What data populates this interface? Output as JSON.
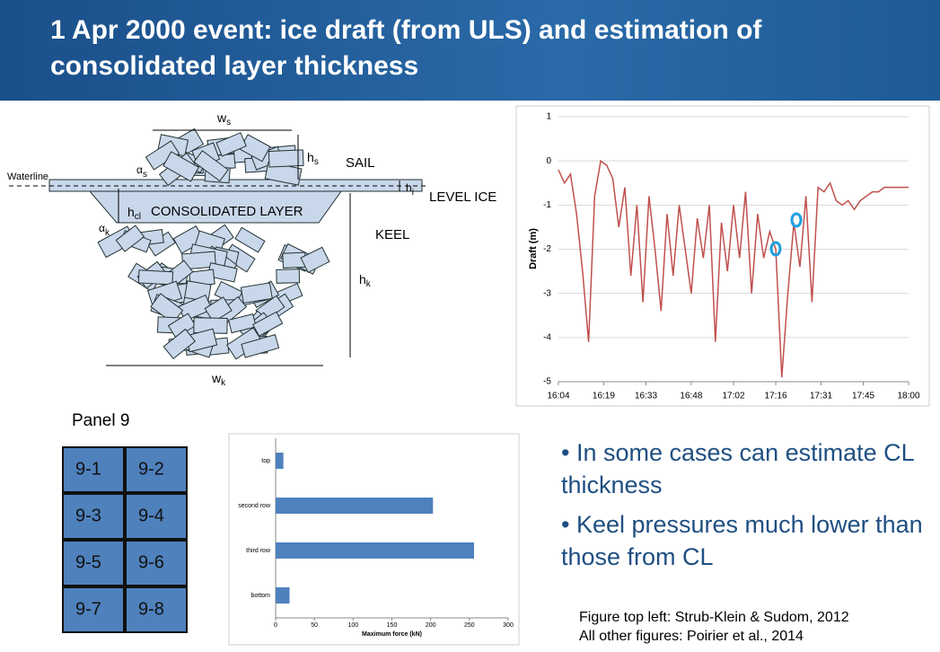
{
  "title": "1 Apr 2000 event: ice draft (from ULS) and estimation of consolidated layer thickness",
  "diagram": {
    "ws": {
      "main": "w",
      "sub": "s"
    },
    "hs": {
      "main": "h",
      "sub": "s"
    },
    "sail": "SAIL",
    "waterline": "Waterline",
    "alpha_s": {
      "main": "α",
      "sub": "s"
    },
    "hi": {
      "main": "h",
      "sub": "i"
    },
    "level_ice": "LEVEL ICE",
    "hcl": {
      "main": "h",
      "sub": "cl"
    },
    "consolidated": "CONSOLIDATED LAYER",
    "alpha_k": {
      "main": "α",
      "sub": "k"
    },
    "keel": "KEEL",
    "hk": {
      "main": "h",
      "sub": "k"
    },
    "wk": {
      "main": "w",
      "sub": "k"
    }
  },
  "panel": {
    "title": "Panel 9",
    "cells": [
      "9-1",
      "9-2",
      "9-3",
      "9-4",
      "9-5",
      "9-6",
      "9-7",
      "9-8"
    ]
  },
  "bullets": [
    "In some cases can estimate CL thickness",
    "Keel pressures much lower than those from CL"
  ],
  "credits": [
    "Figure top left: Strub-Klein & Sudom, 2012",
    "All other figures: Poirier et al., 2014"
  ],
  "chart_data": [
    {
      "type": "line",
      "ylabel": "Draft (m)",
      "color": "#c0504d",
      "x": [
        "16:04",
        "16:06",
        "16:08",
        "16:10",
        "16:12",
        "16:14",
        "16:16",
        "16:18",
        "16:20",
        "16:22",
        "16:24",
        "16:26",
        "16:28",
        "16:30",
        "16:32",
        "16:34",
        "16:36",
        "16:38",
        "16:40",
        "16:42",
        "16:44",
        "16:46",
        "16:48",
        "16:50",
        "16:52",
        "16:54",
        "16:56",
        "16:58",
        "17:00",
        "17:02",
        "17:04",
        "17:06",
        "17:08",
        "17:10",
        "17:12",
        "17:14",
        "17:16",
        "17:18",
        "17:20",
        "17:22",
        "17:24",
        "17:26",
        "17:28",
        "17:30",
        "17:32",
        "17:34",
        "17:36",
        "17:38",
        "17:40",
        "17:42",
        "17:44",
        "17:46",
        "17:48",
        "17:50",
        "17:52",
        "17:54",
        "17:56",
        "17:58",
        "18:00"
      ],
      "values": [
        -0.2,
        -0.5,
        -0.3,
        -1.2,
        -2.5,
        -4.1,
        -0.8,
        0,
        -0.1,
        -0.4,
        -1.5,
        -0.6,
        -2.6,
        -1.0,
        -3.2,
        -0.8,
        -2.0,
        -3.4,
        -1.2,
        -2.6,
        -1.0,
        -2.0,
        -3.0,
        -1.3,
        -2.2,
        -1.0,
        -4.1,
        -1.4,
        -2.5,
        -1.0,
        -2.2,
        -0.7,
        -3.0,
        -1.2,
        -2.2,
        -1.6,
        -2.0,
        -4.9,
        -3.0,
        -1.4,
        -2.4,
        -0.8,
        -3.2,
        -0.6,
        -0.7,
        -0.5,
        -0.9,
        -1.0,
        -0.9,
        -1.1,
        -0.9,
        -0.8,
        -0.7,
        -0.7,
        -0.6,
        -0.6,
        -0.6,
        -0.6,
        -0.6
      ],
      "xlim": [
        "16:04",
        "18:00"
      ],
      "xticks": [
        "16:04",
        "16:19",
        "16:33",
        "16:48",
        "17:02",
        "17:16",
        "17:31",
        "17:45",
        "18:00"
      ],
      "ylim": [
        -5,
        1
      ],
      "yticks": [
        -5,
        -4,
        -3,
        -2,
        -1,
        0,
        1
      ],
      "grid": true
    },
    {
      "type": "hbar",
      "xlabel": "Maximum force (kN)",
      "color": "#4f81bd",
      "categories": [
        "top",
        "second row",
        "third row",
        "bottom"
      ],
      "values": [
        10,
        203,
        256,
        18
      ],
      "xlim": [
        0,
        300
      ],
      "xticks": [
        0,
        50,
        100,
        150,
        200,
        250,
        300
      ]
    }
  ]
}
